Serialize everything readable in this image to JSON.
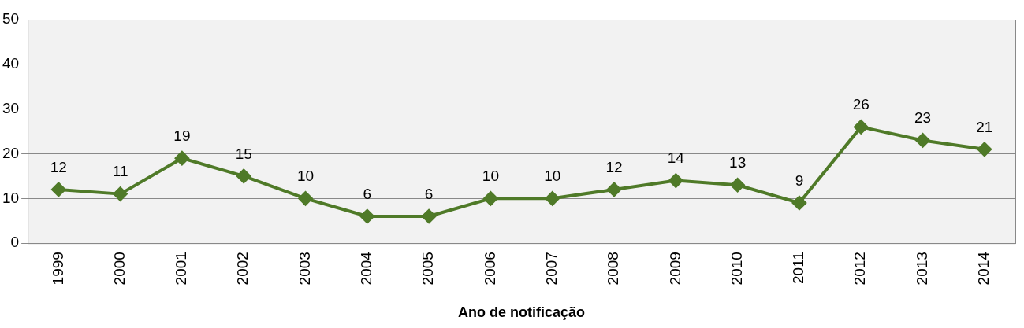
{
  "chart_data": {
    "type": "line",
    "xlabel": "Ano de notificação",
    "categories": [
      "1999",
      "2000",
      "2001",
      "2002",
      "2003",
      "2004",
      "2005",
      "2006",
      "2007",
      "2008",
      "2009",
      "2010",
      "2011",
      "2012",
      "2013",
      "2014"
    ],
    "series": [
      {
        "color": "#4f7a28",
        "values": [
          12,
          11,
          19,
          15,
          10,
          6,
          6,
          10,
          10,
          12,
          14,
          13,
          9,
          26,
          23,
          21
        ]
      }
    ],
    "ylim": [
      0,
      50
    ],
    "yticks": [
      0,
      10,
      20,
      30,
      40,
      50
    ],
    "grid": "y",
    "legend": false,
    "marker": "diamond",
    "line_style": "solid",
    "data_labels": true
  }
}
